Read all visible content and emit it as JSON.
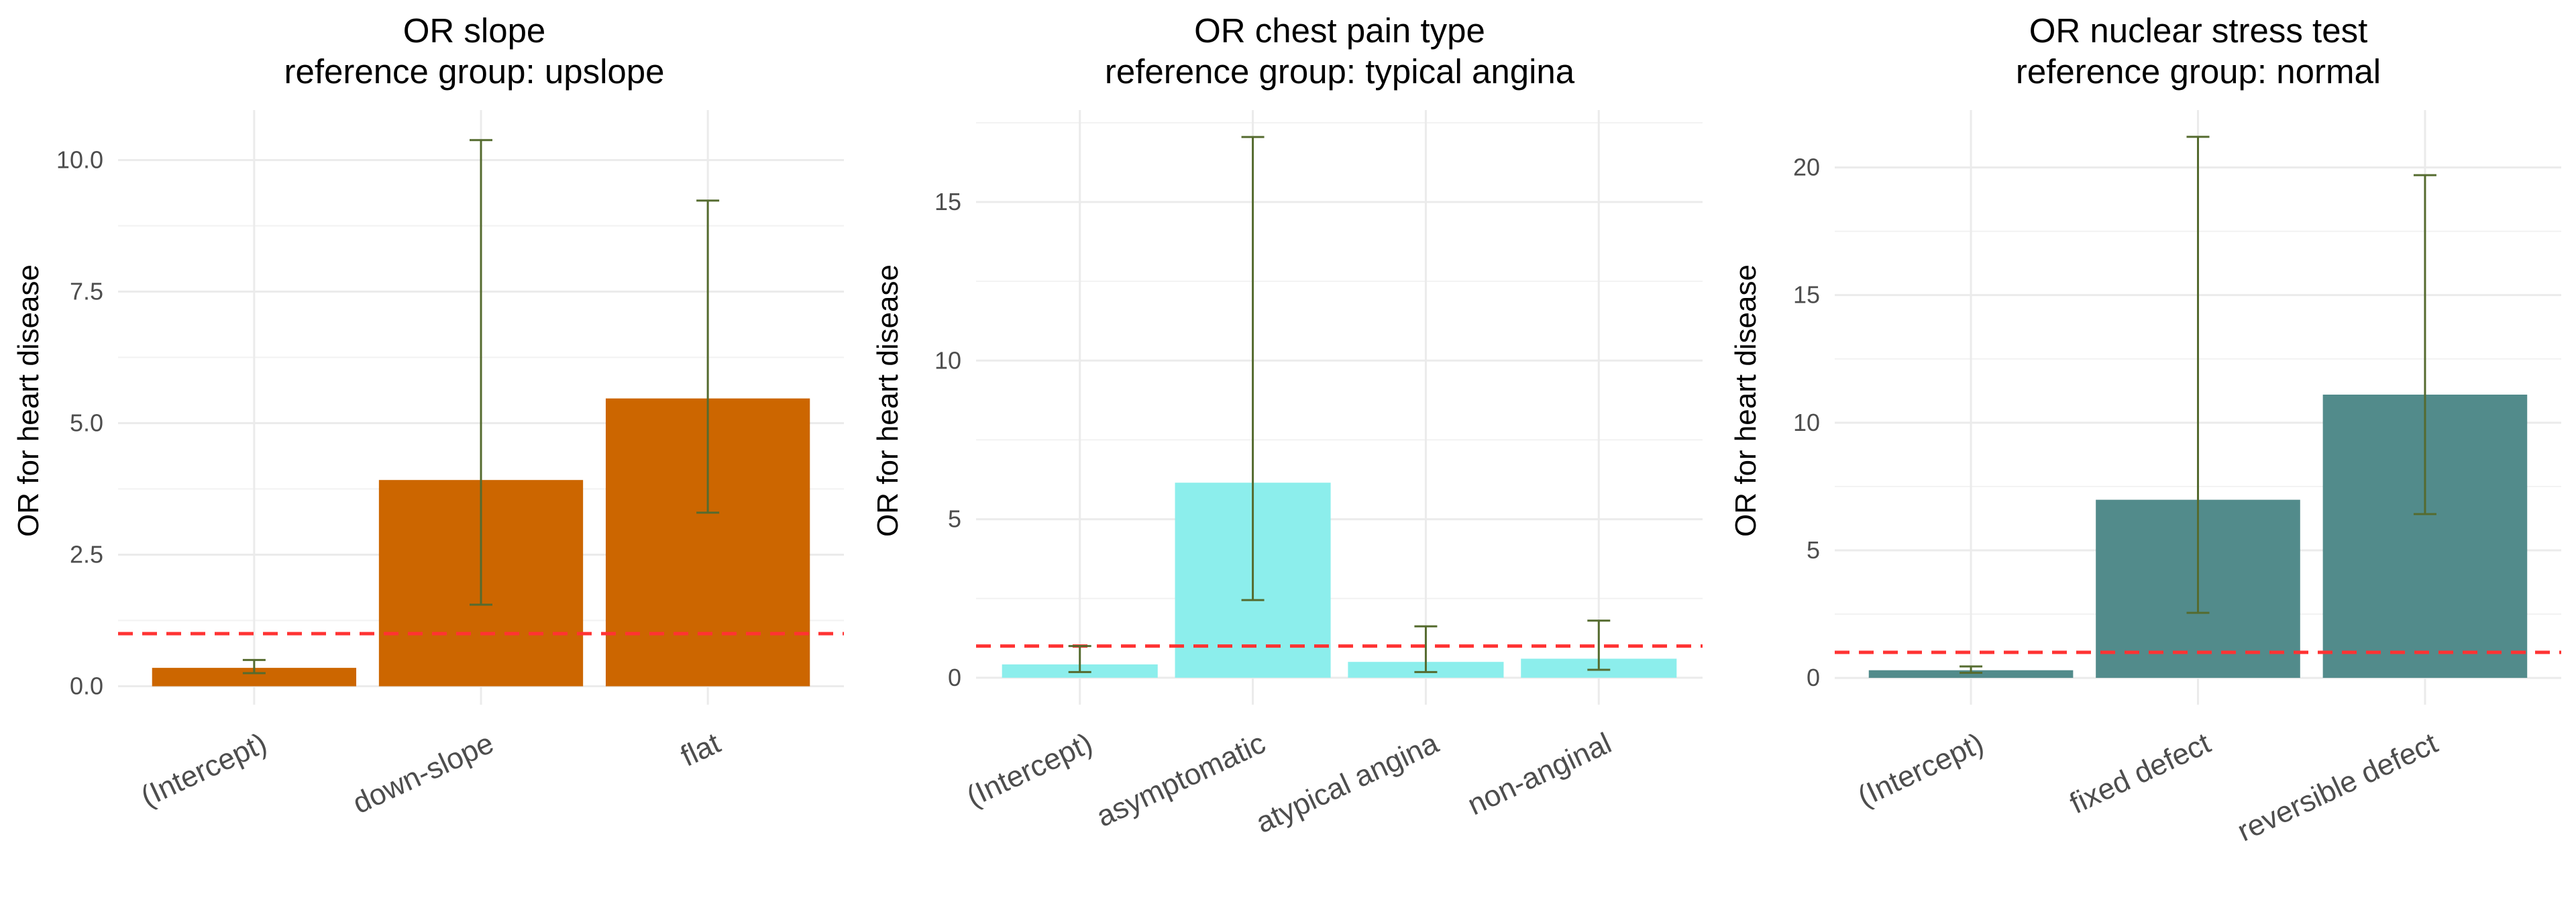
{
  "colors": {
    "error_bar": "#556b2f",
    "reference_line": "#ff3333",
    "grid": "#ebebeb"
  },
  "chart_data": [
    {
      "type": "bar",
      "title": "OR slope",
      "subtitle": "reference group: upslope",
      "ylabel": "OR for heart disease",
      "xlabel": "",
      "categories": [
        "(Intercept)",
        "down-slope",
        "flat"
      ],
      "values": [
        0.35,
        3.92,
        5.47
      ],
      "ci_lower": [
        0.25,
        1.55,
        3.3
      ],
      "ci_upper": [
        0.5,
        10.38,
        9.23
      ],
      "ylim": [
        -0.35,
        10.95
      ],
      "yticks": [
        0,
        2.5,
        5,
        7.5,
        10
      ],
      "ytick_labels": [
        "0.0",
        "2.5",
        "5.0",
        "7.5",
        "10.0"
      ],
      "reference_line": 1,
      "bar_color": "#cc6600",
      "grid": true
    },
    {
      "type": "bar",
      "title": "OR chest pain type",
      "subtitle": "reference group: typical angina",
      "ylabel": "OR for heart disease",
      "xlabel": "",
      "categories": [
        "(Intercept)",
        "asymptomatic",
        "atypical angina",
        "non-anginal"
      ],
      "values": [
        0.42,
        6.15,
        0.5,
        0.6
      ],
      "ci_lower": [
        0.18,
        2.45,
        0.18,
        0.25
      ],
      "ci_upper": [
        1.0,
        17.05,
        1.62,
        1.8
      ],
      "ylim": [
        -0.85,
        17.9
      ],
      "yticks": [
        0,
        5,
        10,
        15
      ],
      "ytick_labels": [
        "0",
        "5",
        "10",
        "15"
      ],
      "reference_line": 1,
      "bar_color": "#8ceeec",
      "grid": true
    },
    {
      "type": "bar",
      "title": "OR nuclear stress test",
      "subtitle": "reference group: normal",
      "ylabel": "OR for heart disease",
      "xlabel": "",
      "categories": [
        "(Intercept)",
        "fixed defect",
        "reversible defect"
      ],
      "values": [
        0.3,
        6.98,
        11.1
      ],
      "ci_lower": [
        0.2,
        2.55,
        6.42
      ],
      "ci_upper": [
        0.45,
        21.2,
        19.7
      ],
      "ylim": [
        -1.05,
        22.25
      ],
      "yticks": [
        0,
        5,
        10,
        15,
        20
      ],
      "ytick_labels": [
        "0",
        "5",
        "10",
        "15",
        "20"
      ],
      "reference_line": 1,
      "bar_color": "#528b8b",
      "grid": true
    }
  ]
}
